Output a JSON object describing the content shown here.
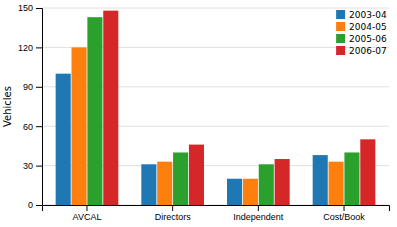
{
  "chart_data": {
    "type": "bar",
    "categories": [
      "AVCAL",
      "Directors",
      "Independent",
      "Cost/Book"
    ],
    "series": [
      {
        "name": "2003-04",
        "values": [
          100,
          31,
          20,
          38
        ]
      },
      {
        "name": "2004-05",
        "values": [
          120,
          33,
          20,
          33
        ]
      },
      {
        "name": "2005-06",
        "values": [
          143,
          40,
          31,
          40
        ]
      },
      {
        "name": "2006-07",
        "values": [
          148,
          46,
          35,
          50
        ]
      }
    ],
    "y_label": "Vehicles",
    "ylim": [
      0,
      150
    ],
    "yticks": [
      0,
      30,
      60,
      90,
      120,
      150
    ],
    "grid": true,
    "legend": "upper right"
  }
}
